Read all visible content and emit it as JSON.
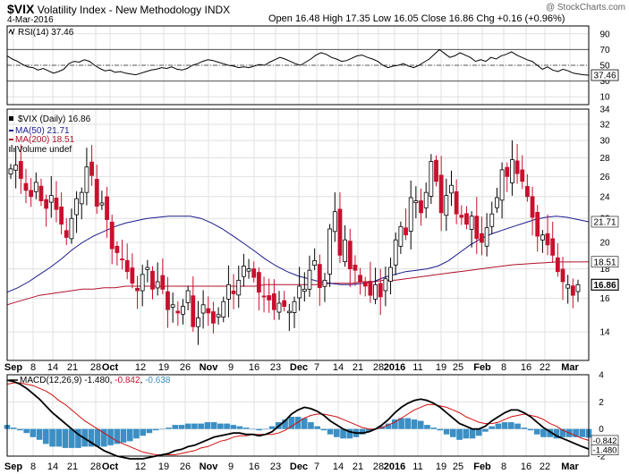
{
  "header": {
    "symbol": "$VIX",
    "name": "Volatility Index - New Methodology",
    "exchange": "INDX",
    "date": "4-Mar-2016",
    "ohlc": "Open 16.48  High 17.35  Low 16.05  Close 16.86  Chg +0.16 (+0.96%)",
    "watermark": "@ StockCharts.com"
  },
  "rsi": {
    "label": "RSI(14)",
    "value": "37.46",
    "ticks": [
      "90",
      "70",
      "50",
      "30",
      "10"
    ]
  },
  "main": {
    "legend": [
      {
        "text": "$VIX (Daily) 16.86",
        "color": "#000000",
        "marker": "square"
      },
      {
        "text": "MA(50) 21.71",
        "color": "#1a1a8c",
        "marker": "line"
      },
      {
        "text": "MA(200) 18.51",
        "color": "#b0102a",
        "marker": "line"
      },
      {
        "text": "Volume undef",
        "color": "#000000",
        "marker": "bars"
      }
    ],
    "price_tags": [
      "21.71",
      "18.51",
      "16.86"
    ],
    "ticks": [
      "34",
      "32",
      "30",
      "28",
      "26",
      "24",
      "22",
      "20",
      "18",
      "16",
      "14"
    ]
  },
  "macd": {
    "label": "MACD(12,26,9)",
    "v1": "-1.480",
    "v2": "-0.842",
    "v3": "-0.638",
    "tags": [
      "-0.842",
      "-1.480"
    ],
    "ticks": [
      "4",
      "2",
      "0",
      "-2"
    ]
  },
  "xaxis": {
    "labels": [
      "Sep",
      "8",
      "14",
      "21",
      "28",
      "Oct",
      "12",
      "19",
      "26",
      "Nov",
      "9",
      "16",
      "23",
      "Dec",
      "7",
      "14",
      "21",
      "28",
      "2016",
      "11",
      "19",
      "25",
      "Feb",
      "8",
      "16",
      "22",
      "Mar"
    ],
    "bold": [
      "Sep",
      "Oct",
      "Nov",
      "Dec",
      "2016",
      "Feb",
      "Mar"
    ]
  },
  "colors": {
    "up": "#000000",
    "down": "#c8102e",
    "ma50": "#1a1a8c",
    "ma200": "#b0102a",
    "hist": "#3b8fc4",
    "signal": "#d01010",
    "grid": "#e0e0e0"
  },
  "chart_data": [
    {
      "type": "candlestick",
      "title": "$VIX (Daily) 16.86",
      "series": [
        {
          "name": "$VIX (Daily) 16.86",
          "values": [
            26.8,
            27.2,
            25.8,
            24.6,
            24.0,
            25.4,
            23.6,
            22.9,
            24.1,
            22.8,
            21.5,
            20.4,
            22.0,
            23.8,
            24.4,
            27.0,
            26.1,
            23.1,
            23.4,
            21.9,
            19.5,
            19.2,
            18.7,
            17.8,
            17.0,
            16.5,
            17.6,
            18.1,
            16.6,
            17.1,
            16.6,
            15.3,
            15.6,
            15.1,
            15.5,
            16.5,
            14.3,
            14.8,
            15.6,
            15.1,
            14.5,
            15.0,
            15.8,
            16.9,
            16.3,
            17.2,
            18.2,
            18.0,
            17.4,
            16.4,
            16.1,
            15.9,
            15.3,
            15.7,
            15.5,
            15.2,
            15.8,
            16.8,
            16.6,
            17.9,
            18.6,
            16.7,
            17.2,
            21.1,
            22.6,
            19.0,
            20.2,
            18.0,
            17.9,
            17.1,
            16.8,
            16.2,
            16.9,
            16.1,
            17.3,
            18.1,
            20.2,
            21.3,
            20.6,
            23.9,
            23.6,
            22.5,
            24.4,
            27.6,
            25.5,
            22.5,
            24.1,
            25.1,
            22.4,
            22.1,
            21.5,
            22.2,
            20.3,
            20.0,
            21.2,
            22.4,
            23.9,
            26.7,
            26.0,
            27.8,
            26.3,
            25.5,
            24.0,
            22.1,
            20.5,
            20.6,
            19.8,
            19.0,
            17.8,
            17.1,
            16.9,
            16.2,
            16.9
          ]
        },
        {
          "name": "MA(50) 21.71",
          "values": [
            16.4,
            16.7,
            17.1,
            17.6,
            18.1,
            18.7,
            19.4,
            20.0,
            20.5,
            20.9,
            21.3,
            21.6,
            21.8,
            22.0,
            22.1,
            22.2,
            22.2,
            22.2,
            22.0,
            21.6,
            21.1,
            20.5,
            19.9,
            19.3,
            18.7,
            18.2,
            17.8,
            17.5,
            17.3,
            17.1,
            17.0,
            16.9,
            16.9,
            17.0,
            17.1,
            17.4,
            17.6,
            17.8,
            17.9,
            18.0,
            18.2,
            18.6,
            19.2,
            19.8,
            20.3,
            20.7,
            21.0,
            21.3,
            21.6,
            21.9,
            22.1,
            22.2,
            22.1,
            21.9,
            21.71
          ]
        },
        {
          "name": "MA(200) 18.51",
          "values": [
            15.6,
            15.8,
            16.0,
            16.2,
            16.3,
            16.4,
            16.5,
            16.6,
            16.6,
            16.7,
            16.7,
            16.8,
            16.8,
            16.8,
            16.8,
            16.8,
            16.8,
            16.8,
            16.8,
            16.8,
            16.8,
            16.8,
            16.8,
            16.8,
            16.9,
            16.9,
            16.9,
            16.9,
            16.9,
            16.9,
            17.0,
            17.0,
            17.0,
            17.1,
            17.1,
            17.2,
            17.2,
            17.3,
            17.4,
            17.5,
            17.6,
            17.7,
            17.8,
            17.9,
            18.0,
            18.1,
            18.2,
            18.3,
            18.35,
            18.4,
            18.45,
            18.5,
            18.5,
            18.5,
            18.51
          ]
        }
      ],
      "ylim": [
        12.5,
        34
      ],
      "log_scale": true,
      "grid": true,
      "legend_position": "top-left"
    },
    {
      "type": "line",
      "title": "RSI(14) 37.46",
      "series": [
        {
          "name": "RSI(14)",
          "values": [
            62,
            58,
            55,
            51,
            48,
            47,
            44,
            46,
            43,
            40,
            42,
            45,
            52,
            55,
            54,
            57,
            55,
            50,
            46,
            43,
            44,
            41,
            42,
            40,
            39,
            38,
            40,
            42,
            44,
            45,
            47,
            46,
            48,
            45,
            44,
            46,
            50,
            52,
            55,
            57,
            56,
            54,
            52,
            50,
            49,
            47,
            48,
            47,
            49,
            51,
            50,
            54,
            57,
            60,
            58,
            55,
            52,
            50,
            54,
            58,
            63,
            66,
            64,
            60,
            58,
            55,
            56,
            59,
            62,
            63,
            60,
            58,
            55,
            50,
            47,
            49,
            50,
            52,
            49,
            47,
            50,
            54,
            58,
            64,
            70,
            65,
            60,
            62,
            66,
            63,
            60,
            55,
            57,
            55,
            60,
            58,
            62,
            64,
            67,
            63,
            60,
            57,
            55,
            50,
            45,
            48,
            44,
            42,
            45,
            43,
            40,
            39,
            38,
            37.46
          ]
        }
      ],
      "ylim": [
        0,
        100
      ],
      "reference_lines": [
        30,
        50,
        70
      ],
      "grid": true
    },
    {
      "type": "line",
      "title": "MACD(12,26,9) -1.480, -0.842, -0.638",
      "series": [
        {
          "name": "MACD",
          "values": [
            3.6,
            3.5,
            3.3,
            3.0,
            2.6,
            2.2,
            1.7,
            1.2,
            0.8,
            0.4,
            0.0,
            -0.4,
            -0.7,
            -1.0,
            -1.3,
            -1.6,
            -1.8,
            -2.0,
            -2.1,
            -2.2,
            -2.2,
            -2.2,
            -2.1,
            -2.0,
            -1.9,
            -1.8,
            -1.6,
            -1.5,
            -1.3,
            -1.2,
            -1.0,
            -0.8,
            -0.6,
            -0.5,
            -0.4,
            -0.3,
            -0.3,
            -0.4,
            -0.4,
            -0.5,
            -0.4,
            -0.2,
            0.2,
            0.6,
            1.1,
            1.4,
            1.6,
            1.5,
            1.3,
            1.0,
            0.6,
            0.3,
            0.0,
            -0.2,
            -0.3,
            -0.3,
            -0.2,
            0.0,
            0.3,
            0.7,
            1.2,
            1.6,
            1.9,
            2.1,
            2.2,
            2.1,
            1.9,
            1.6,
            1.2,
            0.8,
            0.4,
            0.2,
            0.0,
            0.0,
            0.2,
            0.6,
            0.9,
            1.2,
            1.4,
            1.4,
            1.2,
            0.9,
            0.5,
            0.1,
            -0.2,
            -0.5,
            -0.7,
            -0.9,
            -1.1,
            -1.3,
            -1.48
          ]
        },
        {
          "name": "Signal",
          "values": [
            3.3,
            3.4,
            3.4,
            3.3,
            3.2,
            3.0,
            2.8,
            2.5,
            2.1,
            1.8,
            1.4,
            1.0,
            0.6,
            0.3,
            0.0,
            -0.3,
            -0.6,
            -0.9,
            -1.1,
            -1.3,
            -1.5,
            -1.7,
            -1.8,
            -1.9,
            -1.9,
            -1.9,
            -1.9,
            -1.8,
            -1.7,
            -1.6,
            -1.4,
            -1.3,
            -1.1,
            -0.9,
            -0.8,
            -0.6,
            -0.5,
            -0.5,
            -0.4,
            -0.4,
            -0.4,
            -0.4,
            -0.3,
            -0.1,
            0.2,
            0.5,
            0.8,
            1.0,
            1.1,
            1.1,
            1.0,
            0.9,
            0.7,
            0.5,
            0.3,
            0.1,
            0.0,
            0.0,
            0.1,
            0.3,
            0.5,
            0.8,
            1.1,
            1.4,
            1.6,
            1.8,
            1.8,
            1.7,
            1.6,
            1.4,
            1.2,
            0.9,
            0.7,
            0.5,
            0.4,
            0.4,
            0.5,
            0.7,
            0.9,
            1.0,
            1.1,
            1.0,
            0.9,
            0.7,
            0.4,
            0.2,
            -0.1,
            -0.3,
            -0.5,
            -0.7,
            -0.842
          ]
        }
      ],
      "ylim": [
        -2,
        4
      ],
      "grid": true
    }
  ]
}
